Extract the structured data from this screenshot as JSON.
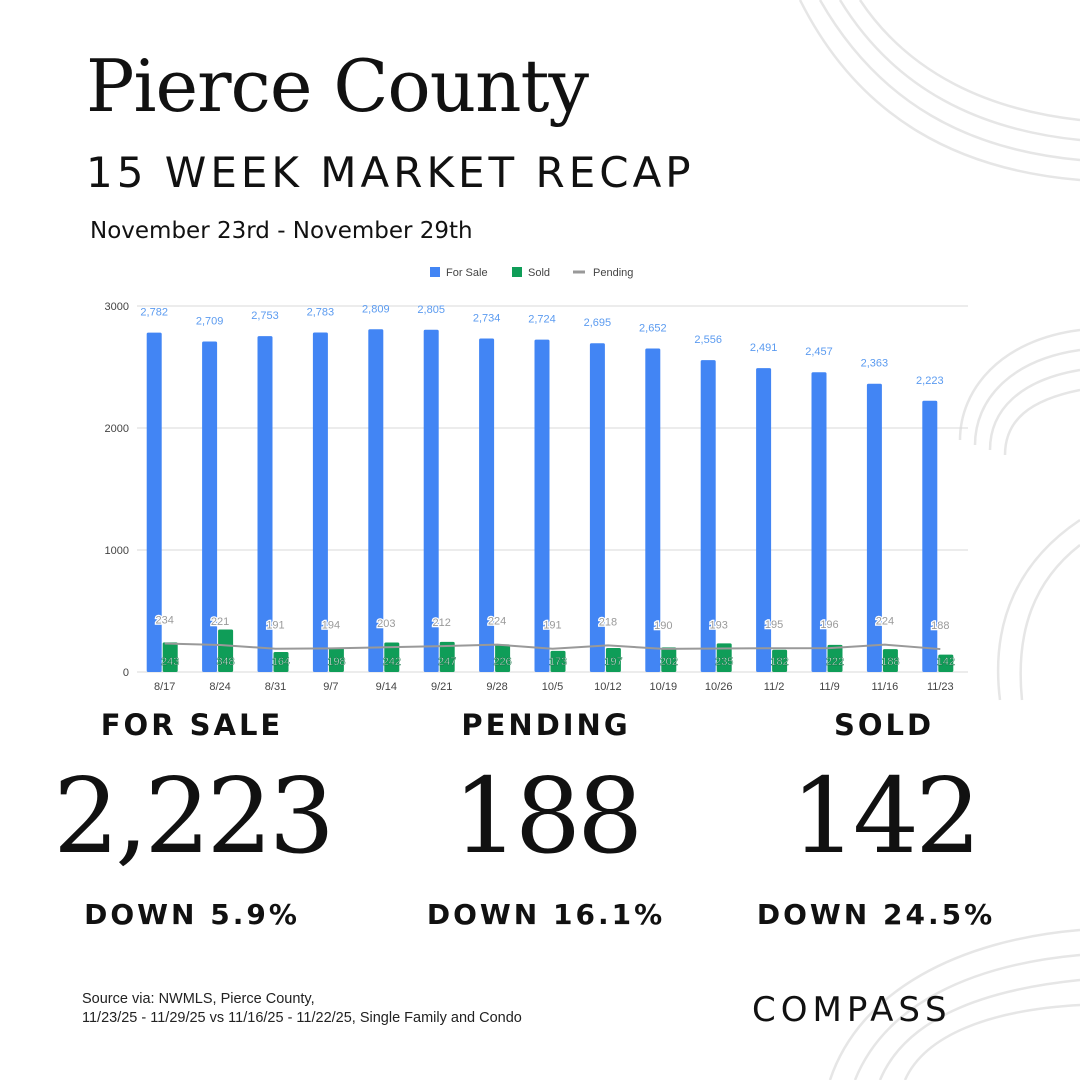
{
  "header": {
    "title": "Pierce County",
    "subtitle": "15 WEEK MARKET RECAP",
    "date_range": "November 23rd - November 29th"
  },
  "stats": {
    "for_sale": {
      "label": "FOR SALE",
      "value": "2,223",
      "change": "DOWN 5.9%"
    },
    "pending": {
      "label": "PENDING",
      "value": "188",
      "change": "DOWN 16.1%"
    },
    "sold": {
      "label": "SOLD",
      "value": "142",
      "change": "DOWN 24.5%"
    }
  },
  "footer": {
    "source_line1": "Source via: NWMLS, Pierce County,",
    "source_line2": "11/23/25 - 11/29/25 vs 11/16/25 - 11/22/25, Single Family and Condo",
    "logo": "COMPASS"
  },
  "colors": {
    "for_sale": "#4285f4",
    "sold": "#0f9d58",
    "pending": "#999999",
    "for_sale_label": "#5b9bf0",
    "grid": "#d9d9d9"
  },
  "chart_data": {
    "type": "bar",
    "title": "",
    "xlabel": "",
    "ylabel": "",
    "ylim": [
      0,
      3000
    ],
    "yticks": [
      0,
      1000,
      2000,
      3000
    ],
    "grid": true,
    "legend_position": "top",
    "categories": [
      "8/17",
      "8/24",
      "8/31",
      "9/7",
      "9/14",
      "9/21",
      "9/28",
      "10/5",
      "10/12",
      "10/19",
      "10/26",
      "11/2",
      "11/9",
      "11/16",
      "11/23"
    ],
    "series": [
      {
        "name": "For Sale",
        "kind": "bar",
        "values": [
          2782,
          2709,
          2753,
          2783,
          2809,
          2805,
          2734,
          2724,
          2695,
          2652,
          2556,
          2491,
          2457,
          2363,
          2223
        ]
      },
      {
        "name": "Sold",
        "kind": "bar",
        "values": [
          243,
          348,
          164,
          198,
          242,
          247,
          226,
          173,
          197,
          202,
          235,
          182,
          222,
          188,
          142
        ]
      },
      {
        "name": "Pending",
        "kind": "line",
        "values": [
          234,
          221,
          191,
          194,
          203,
          212,
          224,
          191,
          218,
          190,
          193,
          195,
          196,
          224,
          188
        ]
      }
    ]
  }
}
